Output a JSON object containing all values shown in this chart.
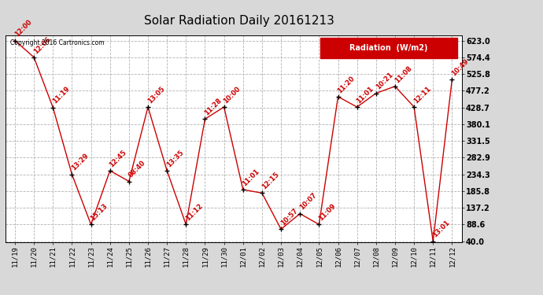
{
  "title": "Solar Radiation Daily 20161213",
  "copyright": "Copyright 2016 Cartronics.com",
  "legend_label": "Radiation  (W/m2)",
  "x_labels": [
    "11/19",
    "11/20",
    "11/21",
    "11/22",
    "11/23",
    "11/24",
    "11/25",
    "11/26",
    "11/27",
    "11/28",
    "11/29",
    "11/30",
    "12/01",
    "12/02",
    "12/03",
    "12/04",
    "12/05",
    "12/06",
    "12/07",
    "12/08",
    "12/09",
    "12/10",
    "12/11",
    "12/12"
  ],
  "y_values": [
    623.0,
    574.4,
    428.7,
    234.3,
    88.6,
    245.0,
    214.0,
    430.0,
    245.0,
    88.6,
    395.0,
    430.0,
    190.0,
    180.0,
    75.0,
    120.0,
    88.6,
    460.0,
    430.0,
    470.0,
    490.0,
    430.0,
    40.0,
    510.0
  ],
  "point_labels": [
    "12:00",
    "12:06",
    "11:19",
    "13:29",
    "15:13",
    "12:45",
    "08:40",
    "13:05",
    "13:35",
    "11:12",
    "11:28",
    "10:00",
    "11:01",
    "12:15",
    "10:57",
    "10:07",
    "11:09",
    "11:20",
    "11:01",
    "10:21",
    "11:08",
    "12:11",
    "13:01",
    "10:49"
  ],
  "y_ticks": [
    40.0,
    88.6,
    137.2,
    185.8,
    234.3,
    282.9,
    331.5,
    380.1,
    428.7,
    477.2,
    525.8,
    574.4,
    623.0
  ],
  "y_min": 40.0,
  "y_max": 623.0,
  "line_color": "#cc0000",
  "marker_color": "#000000",
  "bg_color": "#d8d8d8",
  "plot_bg_color": "#ffffff",
  "grid_color": "#aaaaaa",
  "title_color": "#000000",
  "label_color": "#cc0000",
  "legend_bg": "#cc0000",
  "legend_text_color": "#ffffff"
}
